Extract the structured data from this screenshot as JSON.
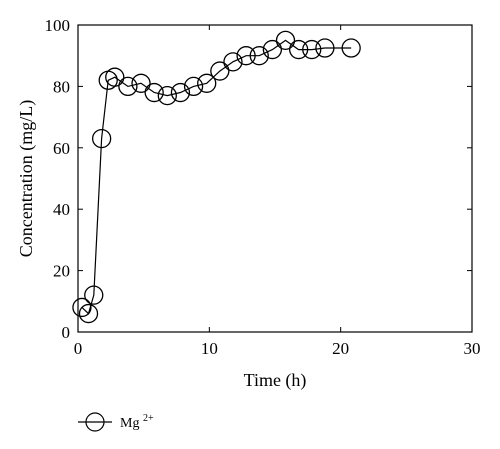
{
  "chart_data": {
    "type": "line",
    "xlabel": "Time (h)",
    "ylabel": "Concentration (mg/L)",
    "xlim": [
      0,
      30
    ],
    "ylim": [
      0,
      100
    ],
    "xticks": [
      "0",
      "10",
      "20",
      "30"
    ],
    "yticks": [
      "0",
      "20",
      "40",
      "60",
      "80",
      "100"
    ],
    "grid": false,
    "legend_position": "bottom-left",
    "series": [
      {
        "name": "Mg",
        "name_superscript": "2+",
        "marker": "open-circle",
        "color": "#000000",
        "x": [
          0.3,
          0.8,
          1.2,
          1.8,
          2.3,
          2.8,
          3.8,
          4.8,
          5.8,
          6.8,
          7.8,
          8.8,
          9.8,
          10.8,
          11.8,
          12.8,
          13.8,
          14.8,
          15.8,
          16.8,
          17.8,
          18.8,
          20.8
        ],
        "y": [
          8,
          6,
          12,
          63,
          82,
          83,
          80,
          81,
          78,
          77,
          78,
          80,
          81,
          85,
          88,
          90,
          90,
          92,
          95,
          92,
          92,
          92.5,
          92.5
        ]
      }
    ]
  }
}
